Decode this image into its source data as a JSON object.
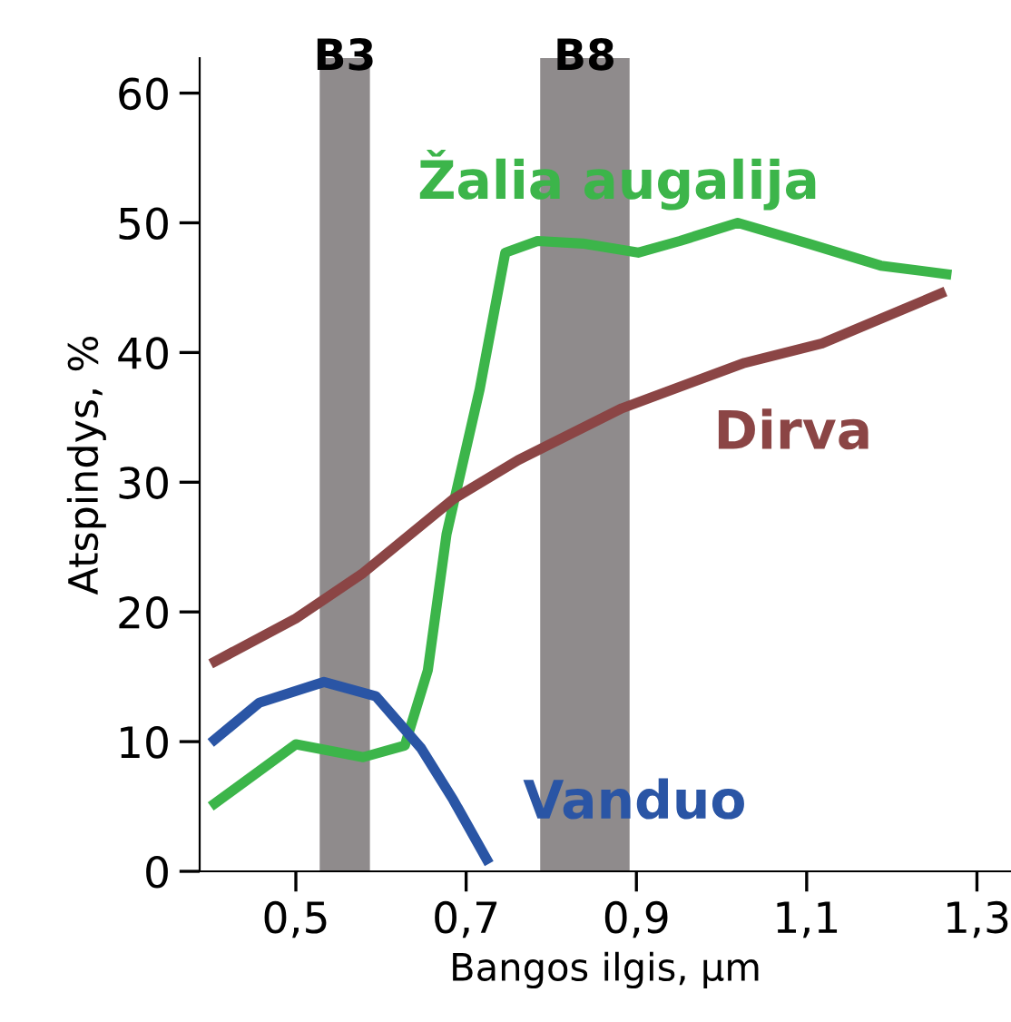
{
  "chart_data": {
    "type": "line",
    "xlabel": "Bangos ilgis, µm",
    "ylabel": "Atspindys, %",
    "xlim": [
      0.387,
      1.34
    ],
    "ylim": [
      0,
      62.7
    ],
    "xticks": [
      {
        "value": 0.5,
        "label": "0,5"
      },
      {
        "value": 0.7,
        "label": "0,7"
      },
      {
        "value": 0.9,
        "label": "0,9"
      },
      {
        "value": 1.1,
        "label": "1,1"
      },
      {
        "value": 1.3,
        "label": "1,3"
      }
    ],
    "yticks": [
      0,
      10,
      20,
      30,
      40,
      50,
      60
    ],
    "grid": false,
    "legend": false,
    "marker": "none",
    "line_style": "solid",
    "bands": [
      {
        "axis": "x",
        "from": 0.528,
        "to": 0.587,
        "label": "B3",
        "color": "#8f8b8c"
      },
      {
        "axis": "x",
        "from": 0.787,
        "to": 0.892,
        "label": "B8",
        "color": "#8f8b8c"
      }
    ],
    "series": [
      {
        "name": "Žalia augalija",
        "color": "#3cb54a",
        "x": [
          0.4,
          0.5,
          0.579,
          0.628,
          0.655,
          0.677,
          0.716,
          0.746,
          0.784,
          0.837,
          0.902,
          0.951,
          1.019,
          1.102,
          1.187,
          1.27
        ],
        "values": [
          5.0,
          9.8,
          8.8,
          9.7,
          15.5,
          26,
          37.2,
          47.7,
          48.6,
          48.4,
          47.7,
          48.6,
          50.0,
          48.4,
          46.7,
          46.0
        ]
      },
      {
        "name": "Dirva",
        "color": "#8b4545",
        "x": [
          0.4,
          0.5,
          0.579,
          0.685,
          0.761,
          0.883,
          1.027,
          1.118,
          1.263
        ],
        "values": [
          16.0,
          19.5,
          23.0,
          28.7,
          31.7,
          35.7,
          39.2,
          40.7,
          44.7
        ]
      },
      {
        "name": "Vanduo",
        "color": "#2a55a5",
        "x": [
          0.4,
          0.457,
          0.533,
          0.594,
          0.647,
          0.685,
          0.727
        ],
        "values": [
          9.9,
          13.0,
          14.6,
          13.5,
          9.5,
          5.5,
          0.6
        ]
      }
    ]
  }
}
